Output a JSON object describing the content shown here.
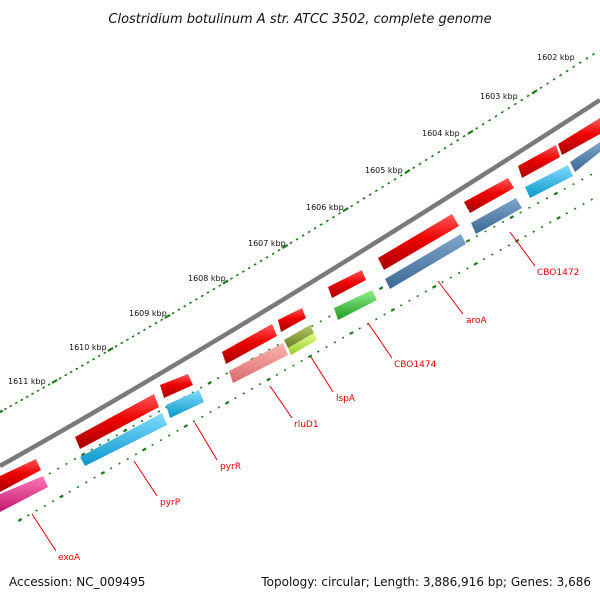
{
  "title": "Clostridium botulinum A str. ATCC 3502, complete genome",
  "footer": {
    "accession": "Accession: NC_009495",
    "summary": "Topology: circular; Length: 3,886,916 bp; Genes: 3,686"
  },
  "scale_labels": [
    "1602 kbp",
    "1603 kbp",
    "1604 kbp",
    "1605 kbp",
    "1606 kbp",
    "1607 kbp",
    "1608 kbp",
    "1609 kbp",
    "1610 kbp",
    "1611 kbp"
  ],
  "gene_labels": [
    "CBO1472",
    "aroA",
    "CBO1474",
    "lspA",
    "rluD1",
    "pyrR",
    "pyrP",
    "exoA"
  ],
  "colors": {
    "backbone": "#7a7a7a",
    "cds_red": "#ee0000",
    "tick_green": "#1e7a1e",
    "label_red": "#e00000",
    "steel_blue": "#4f7fb0",
    "cyan": "#12b4e6",
    "green": "#2fbf2f",
    "salmon": "#f08a8a",
    "olive": "#8ba035",
    "yellow_green": "#b8e34a",
    "magenta": "#e8308c"
  }
}
